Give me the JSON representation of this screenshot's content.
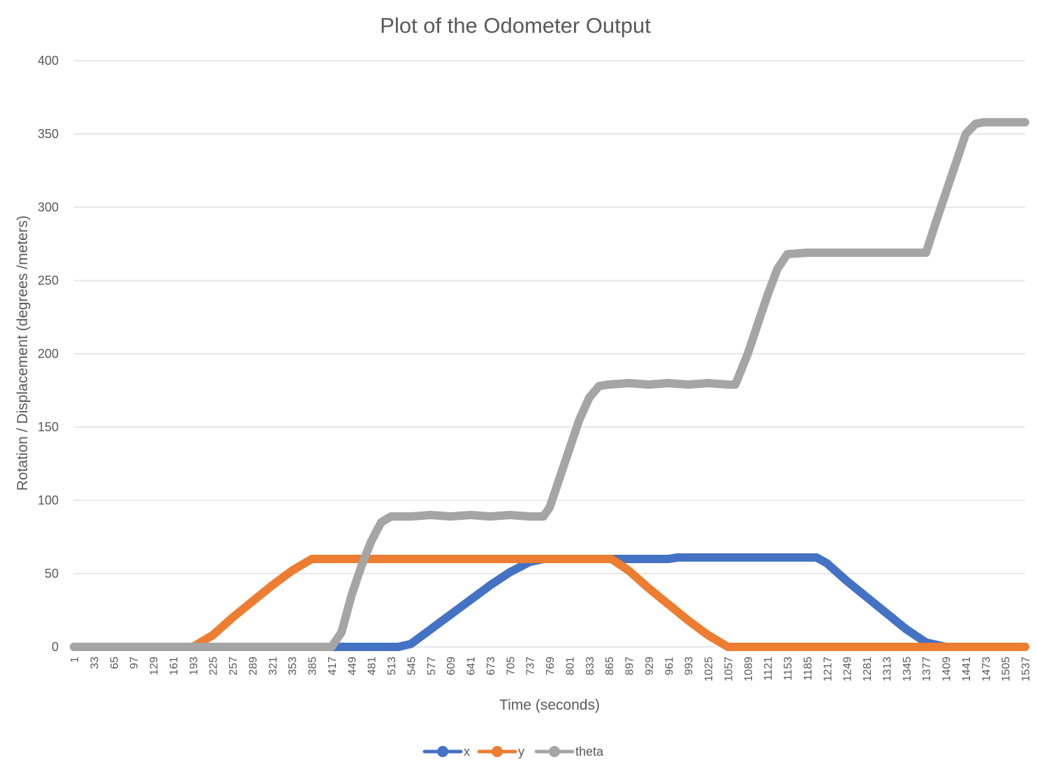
{
  "chart_data": {
    "type": "line",
    "title": "Plot of the Odometer Output",
    "xlabel": "Time (seconds)",
    "ylabel": "Rotation / Displacement (degrees /meters)",
    "xlim": [
      1,
      1537
    ],
    "ylim": [
      0,
      400
    ],
    "yticks": [
      0,
      50,
      100,
      150,
      200,
      250,
      300,
      350,
      400
    ],
    "xtick_labels": [
      "1",
      "33",
      "65",
      "97",
      "129",
      "161",
      "193",
      "225",
      "257",
      "289",
      "321",
      "353",
      "385",
      "417",
      "449",
      "481",
      "513",
      "545",
      "577",
      "609",
      "641",
      "673",
      "705",
      "737",
      "769",
      "801",
      "833",
      "865",
      "897",
      "929",
      "961",
      "993",
      "1025",
      "1057",
      "1089",
      "1121",
      "1153",
      "1185",
      "1217",
      "1249",
      "1281",
      "1313",
      "1345",
      "1377",
      "1409",
      "1441",
      "1473",
      "1505",
      "1537"
    ],
    "grid": true,
    "legend_position": "bottom",
    "series": [
      {
        "name": "x",
        "color": "#4472C4",
        "points": [
          [
            1,
            0
          ],
          [
            417,
            0
          ],
          [
            525,
            0
          ],
          [
            545,
            2
          ],
          [
            577,
            12
          ],
          [
            609,
            22
          ],
          [
            641,
            32
          ],
          [
            673,
            42
          ],
          [
            705,
            51
          ],
          [
            737,
            58
          ],
          [
            760,
            60
          ],
          [
            961,
            60
          ],
          [
            975,
            61
          ],
          [
            1200,
            61
          ],
          [
            1217,
            57
          ],
          [
            1249,
            45
          ],
          [
            1281,
            34
          ],
          [
            1313,
            23
          ],
          [
            1345,
            12
          ],
          [
            1377,
            3
          ],
          [
            1409,
            0
          ],
          [
            1537,
            0
          ]
        ]
      },
      {
        "name": "y",
        "color": "#ED7D31",
        "points": [
          [
            1,
            0
          ],
          [
            193,
            0
          ],
          [
            225,
            8
          ],
          [
            257,
            20
          ],
          [
            289,
            31
          ],
          [
            321,
            42
          ],
          [
            353,
            52
          ],
          [
            385,
            60
          ],
          [
            869,
            60
          ],
          [
            897,
            52
          ],
          [
            929,
            40
          ],
          [
            961,
            29
          ],
          [
            993,
            18
          ],
          [
            1025,
            8
          ],
          [
            1057,
            0
          ],
          [
            1537,
            0
          ]
        ]
      },
      {
        "name": "theta",
        "color": "#A5A5A5",
        "points": [
          [
            1,
            0
          ],
          [
            417,
            0
          ],
          [
            433,
            10
          ],
          [
            449,
            35
          ],
          [
            465,
            55
          ],
          [
            481,
            72
          ],
          [
            497,
            85
          ],
          [
            513,
            89
          ],
          [
            545,
            89
          ],
          [
            577,
            90
          ],
          [
            609,
            89
          ],
          [
            641,
            90
          ],
          [
            673,
            89
          ],
          [
            705,
            90
          ],
          [
            737,
            89
          ],
          [
            759,
            89
          ],
          [
            769,
            95
          ],
          [
            785,
            115
          ],
          [
            801,
            135
          ],
          [
            817,
            155
          ],
          [
            833,
            170
          ],
          [
            849,
            178
          ],
          [
            865,
            179
          ],
          [
            897,
            180
          ],
          [
            929,
            179
          ],
          [
            961,
            180
          ],
          [
            993,
            179
          ],
          [
            1025,
            180
          ],
          [
            1057,
            179
          ],
          [
            1069,
            179
          ],
          [
            1089,
            200
          ],
          [
            1105,
            220
          ],
          [
            1121,
            240
          ],
          [
            1137,
            258
          ],
          [
            1153,
            268
          ],
          [
            1185,
            269
          ],
          [
            1377,
            269
          ],
          [
            1393,
            290
          ],
          [
            1409,
            310
          ],
          [
            1425,
            330
          ],
          [
            1441,
            350
          ],
          [
            1457,
            357
          ],
          [
            1470,
            358
          ],
          [
            1537,
            358
          ]
        ]
      }
    ]
  }
}
